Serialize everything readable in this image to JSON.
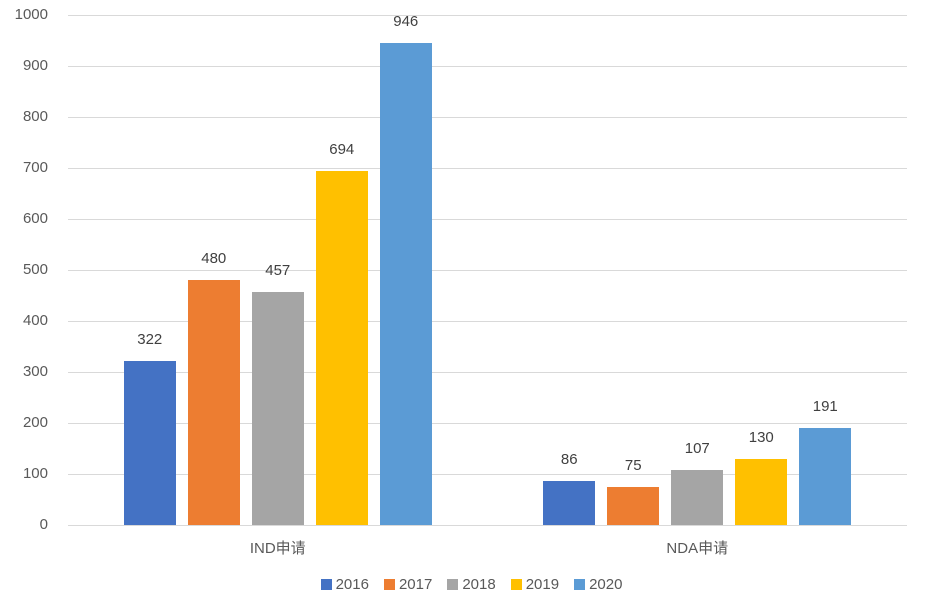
{
  "chart_data": {
    "type": "bar",
    "orientation": "vertical",
    "categories": [
      "IND申请",
      "NDA申请"
    ],
    "series": [
      {
        "name": "2016",
        "color": "#4472C4",
        "values": [
          322,
          86
        ]
      },
      {
        "name": "2017",
        "color": "#ED7D31",
        "values": [
          480,
          75
        ]
      },
      {
        "name": "2018",
        "color": "#A5A5A5",
        "values": [
          457,
          107
        ]
      },
      {
        "name": "2019",
        "color": "#FFC000",
        "values": [
          694,
          130
        ]
      },
      {
        "name": "2020",
        "color": "#5B9BD5",
        "values": [
          946,
          191
        ]
      }
    ],
    "xlabel": "",
    "ylabel": "",
    "ylim": [
      0,
      1000
    ],
    "ytick_step": 100,
    "yticks": [
      0,
      100,
      200,
      300,
      400,
      500,
      600,
      700,
      800,
      900,
      1000
    ],
    "grid": true,
    "data_labels": true,
    "legend_position": "bottom",
    "legend_labels": [
      "2016",
      "2017",
      "2018",
      "2019",
      "2020"
    ]
  },
  "style": {
    "background": "#FFFFFF",
    "gridline_color": "#D9D9D9",
    "axis_label_color": "#595959",
    "category_label_color": "#595959",
    "data_label_color": "#404040",
    "legend_label_color": "#595959"
  }
}
